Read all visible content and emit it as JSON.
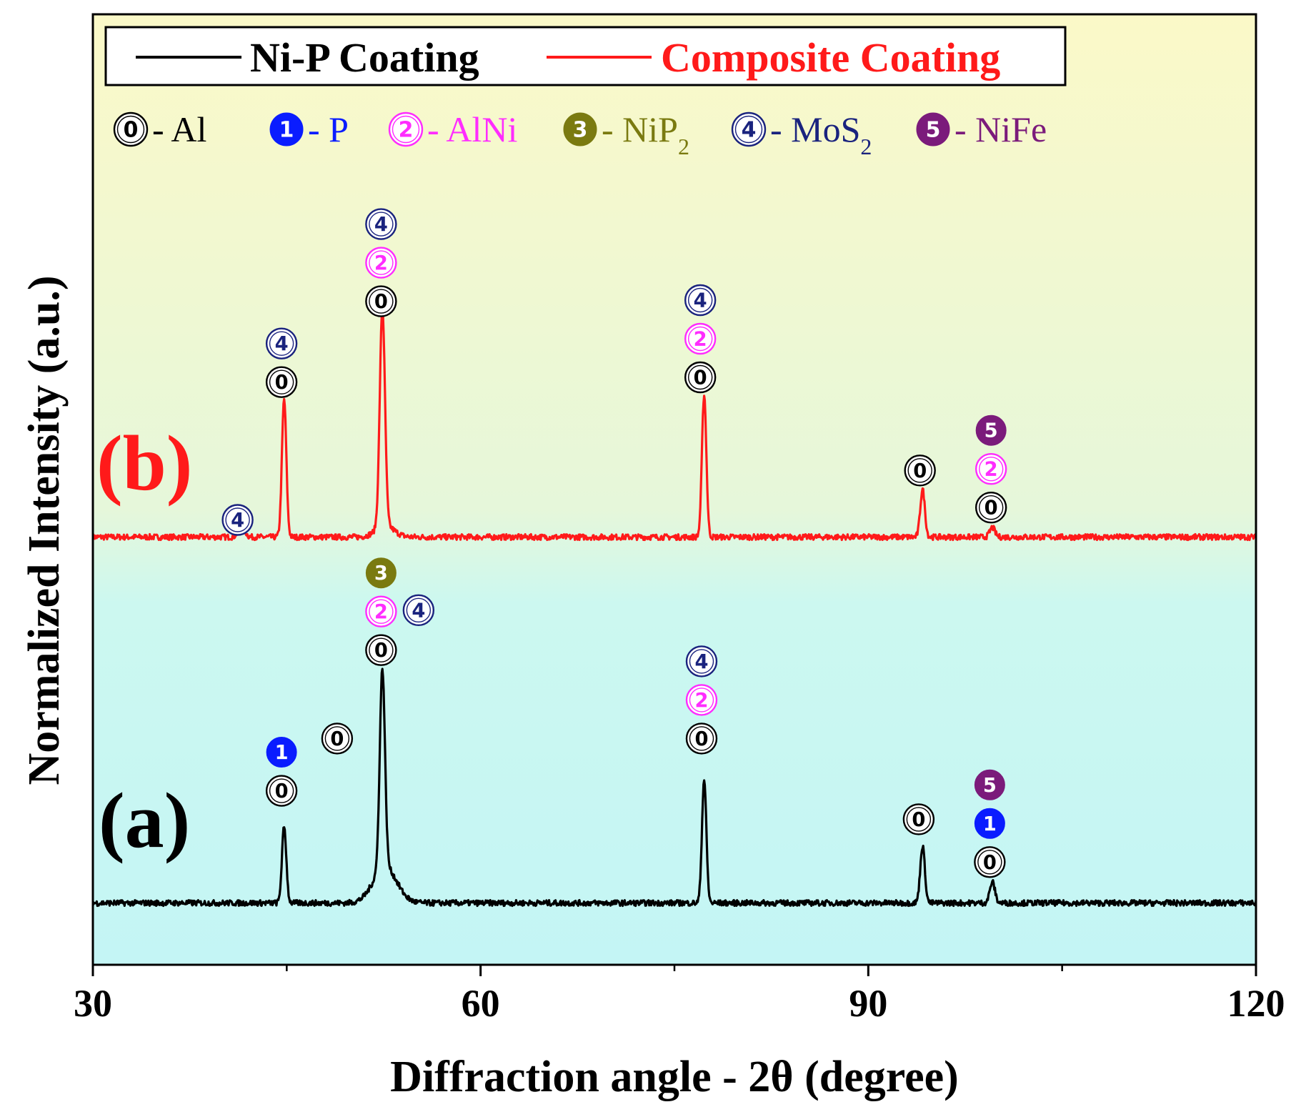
{
  "chart_data": {
    "type": "line",
    "title": "",
    "xlabel": "Diffraction angle - 2θ (degree)",
    "ylabel": "Normalized Intensity (a.u.)",
    "xlim": [
      30,
      120
    ],
    "ylim": [
      0,
      100
    ],
    "xticks": [
      "30",
      "60",
      "90",
      "120"
    ],
    "grid": false,
    "legend": {
      "placement": "top-left",
      "entries": [
        {
          "name": "Ni-P Coating",
          "color": "#000000"
        },
        {
          "name": "Composite Coating",
          "color": "#ff1a1a"
        }
      ]
    },
    "phase_key": [
      {
        "marker": "0",
        "label": "Al",
        "sub": "",
        "color": "#000000",
        "filled": false
      },
      {
        "marker": "1",
        "label": "P",
        "sub": "",
        "color": "#0a1cff",
        "filled": true
      },
      {
        "marker": "2",
        "label": "AlNi",
        "sub": "",
        "color": "#ff2cff",
        "filled": false
      },
      {
        "marker": "3",
        "label": "NiP",
        "sub": "2",
        "color": "#7a7a10",
        "filled": true
      },
      {
        "marker": "4",
        "label": "MoS",
        "sub": "2",
        "color": "#1a237e",
        "filled": false
      },
      {
        "marker": "5",
        "label": "NiFe",
        "sub": "",
        "color": "#7b1b7b",
        "filled": true
      }
    ],
    "series": [
      {
        "name": "Composite Coating",
        "panel_label": "(b)",
        "color": "#ff1a1a",
        "baseline": 45,
        "peaks": [
          {
            "x": 41.5,
            "h": 1.2,
            "w": 0.25
          },
          {
            "x": 44.8,
            "h": 14.5,
            "w": 0.17
          },
          {
            "x": 52.4,
            "h": 23.0,
            "w": 0.2
          },
          {
            "x": 52.6,
            "h": 1.2,
            "w": 0.7
          },
          {
            "x": 77.3,
            "h": 15.0,
            "w": 0.17
          },
          {
            "x": 94.2,
            "h": 5.0,
            "w": 0.18
          },
          {
            "x": 99.6,
            "h": 1.0,
            "w": 0.2
          }
        ],
        "phase_markers": [
          {
            "x": 41.2,
            "y": 45,
            "stack": [
              "4"
            ]
          },
          {
            "x": 44.6,
            "y": 59.5,
            "stack": [
              "0",
              "4"
            ]
          },
          {
            "x": 52.3,
            "y": 68,
            "stack": [
              "0",
              "2",
              "4"
            ]
          },
          {
            "x": 77.0,
            "y": 60,
            "stack": [
              "0",
              "2",
              "4"
            ]
          },
          {
            "x": 94.0,
            "y": 50.2,
            "stack": [
              "0"
            ]
          },
          {
            "x": 99.5,
            "y": 46.3,
            "stack": [
              "0",
              "2",
              "5"
            ]
          }
        ]
      },
      {
        "name": "Ni-P Coating",
        "panel_label": "(a)",
        "color": "#000000",
        "baseline": 6.5,
        "peaks": [
          {
            "x": 44.8,
            "h": 8.0,
            "w": 0.17
          },
          {
            "x": 52.4,
            "h": 21.0,
            "w": 0.2
          },
          {
            "x": 52.6,
            "h": 3.8,
            "w": 0.9
          },
          {
            "x": 77.3,
            "h": 13.0,
            "w": 0.17
          },
          {
            "x": 94.2,
            "h": 6.0,
            "w": 0.18
          },
          {
            "x": 99.6,
            "h": 2.2,
            "w": 0.2
          }
        ],
        "phase_markers": [
          {
            "x": 44.6,
            "y": 16.5,
            "stack": [
              "0",
              "1"
            ]
          },
          {
            "x": 48.9,
            "y": 22,
            "stack": [
              "0"
            ]
          },
          {
            "x": 52.3,
            "y": 31.3,
            "stack": [
              "0",
              "2",
              "3"
            ]
          },
          {
            "x": 55.2,
            "y": 35.5,
            "stack": [
              "4"
            ]
          },
          {
            "x": 77.1,
            "y": 22,
            "stack": [
              "0",
              "2",
              "4"
            ]
          },
          {
            "x": 93.9,
            "y": 13.5,
            "stack": [
              "0"
            ]
          },
          {
            "x": 99.4,
            "y": 9,
            "stack": [
              "0",
              "1",
              "5"
            ]
          }
        ]
      }
    ]
  }
}
